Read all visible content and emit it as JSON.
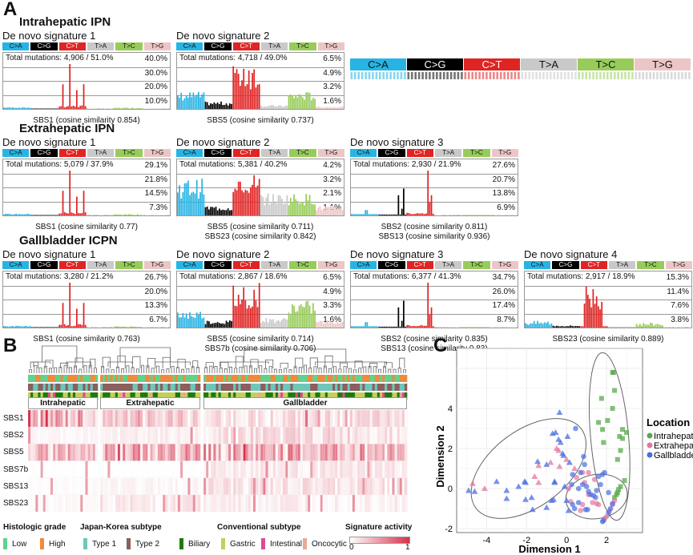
{
  "panels": {
    "a": "A",
    "b": "B",
    "c": "C"
  },
  "mutation_categories": [
    {
      "label": "C>A",
      "color": "#27b4e4",
      "text": "#111"
    },
    {
      "label": "C>G",
      "color": "#000000",
      "text": "#fff"
    },
    {
      "label": "C>T",
      "color": "#e02424",
      "text": "#fff"
    },
    {
      "label": "T>A",
      "color": "#c9c9c9",
      "text": "#111"
    },
    {
      "label": "T>C",
      "color": "#98cc5a",
      "text": "#111"
    },
    {
      "label": "T>G",
      "color": "#ecc6c6",
      "text": "#111"
    }
  ],
  "groups": [
    {
      "title": "Intrahepatic IPN",
      "signatures": [
        {
          "title": "De novo signature 1",
          "total": "Total mutations: 4,906 / 51.0%",
          "yticks": [
            "40.0%",
            "30.0%",
            "20.0%",
            "10.0%"
          ],
          "profile": "sbs1",
          "captions": [
            "SBS1 (cosine similarity 0.854)"
          ]
        },
        {
          "title": "De novo signature 2",
          "total": "Total mutations: 4,718 / 49.0%",
          "yticks": [
            "6.5%",
            "4.9%",
            "3.2%",
            "1.6%"
          ],
          "profile": "sbs5",
          "captions": [
            "SBS5 (cosine similarity 0.737)"
          ]
        }
      ]
    },
    {
      "title": "Extrahepatic IPN",
      "signatures": [
        {
          "title": "De novo signature 1",
          "total": "Total mutations: 5,079 / 37.9%",
          "yticks": [
            "29.1%",
            "21.8%",
            "14.5%",
            "7.3%"
          ],
          "profile": "sbs1",
          "captions": [
            "SBS1 (cosine similarity 0.77)"
          ]
        },
        {
          "title": "De novo signature 2",
          "total": "Total mutations: 5,381 / 40.2%",
          "yticks": [
            "4.2%",
            "3.2%",
            "2.1%",
            "1.1%"
          ],
          "profile": "sbs5b",
          "captions": [
            "SBS5 (cosine similarity 0.711)",
            "SBS23 (cosine similarity 0.842)"
          ]
        },
        {
          "title": "De novo signature 3",
          "total": "Total mutations: 2,930 / 21.9%",
          "yticks": [
            "27.6%",
            "20.7%",
            "13.8%",
            "6.9%"
          ],
          "profile": "sbs2",
          "captions": [
            "SBS2 (cosine similarity 0.811)",
            "SBS13 (cosine similarity 0.936)"
          ]
        }
      ]
    },
    {
      "title": "Gallbladder ICPN",
      "signatures": [
        {
          "title": "De novo signature 1",
          "total": "Total mutations: 3,280 / 21.2%",
          "yticks": [
            "26.7%",
            "20.0%",
            "13.3%",
            "6.7%"
          ],
          "profile": "sbs1",
          "captions": [
            "SBS1 (cosine similarity 0.763)"
          ]
        },
        {
          "title": "De novo signature 2",
          "total": "Total mutations: 2,867 / 18.6%",
          "yticks": [
            "6.5%",
            "4.9%",
            "3.3%",
            "1.6%"
          ],
          "profile": "sbs5c",
          "captions": [
            "SBS5 (cosine similarity 0.714)",
            "SBS7b (cosine similarity 0.706)"
          ]
        },
        {
          "title": "De novo signature 3",
          "total": "Total mutations: 6,377 / 41.3%",
          "yticks": [
            "34.7%",
            "26.0%",
            "17.4%",
            "8.7%"
          ],
          "profile": "sbs2",
          "captions": [
            "SBS2 (cosine similarity 0.835)",
            "SBS13 (cosine similarity 0.83)"
          ]
        },
        {
          "title": "De novo signature 4",
          "total": "Total mutations: 2,917 / 18.9%",
          "yticks": [
            "15.3%",
            "11.4%",
            "7.6%",
            "3.8%"
          ],
          "profile": "sbs23",
          "captions": [
            "SBS23 (cosine similarity 0.889)"
          ]
        }
      ]
    }
  ],
  "heatmap": {
    "regions": [
      "Intrahepatic",
      "Extrahepatic",
      "Gallbladder"
    ],
    "rows": [
      "SBS1",
      "SBS2",
      "SBS5",
      "SBS7b",
      "SBS13",
      "SBS23"
    ],
    "legend": {
      "histologic_grade": {
        "title": "Histologic grade",
        "items": [
          {
            "label": "Low",
            "color": "#5fd38d"
          },
          {
            "label": "High",
            "color": "#f08a3c"
          }
        ]
      },
      "japan_korea": {
        "title": "Japan-Korea subtype",
        "items": [
          {
            "label": "Type 1",
            "color": "#6ec6b9"
          },
          {
            "label": "Type 2",
            "color": "#8c5e5e"
          }
        ]
      },
      "conventional": {
        "title": "Conventional subtype",
        "items": [
          {
            "label": "Biliary",
            "color": "#1e7a0e"
          },
          {
            "label": "Gastric",
            "color": "#c3cf5a"
          },
          {
            "label": "Intestinal",
            "color": "#dd4c8f"
          },
          {
            "label": "Oncocytic",
            "color": "#e8a898"
          }
        ]
      },
      "activity": {
        "title": "Signature activity",
        "min": "0",
        "max": "1",
        "low_color": "#ffffff",
        "high_color": "#d7304a"
      }
    }
  },
  "chart_data": {
    "type": "scatter",
    "title": "",
    "xlabel": "Dimension 1",
    "ylabel": "Dimension 2",
    "xlim": [
      -5.5,
      3.8
    ],
    "ylim": [
      -2.2,
      7.0
    ],
    "xticks": [
      "-4",
      "-2",
      "0",
      "2"
    ],
    "yticks": [
      "-2",
      "0",
      "2",
      "4"
    ],
    "grid": true,
    "legend": {
      "title": "Location",
      "placement": "right"
    },
    "series": [
      {
        "name": "Intrahepatic",
        "color": "#5aa84e",
        "points": [
          [
            2.3,
            5.8
          ],
          [
            2.35,
            5.8
          ],
          [
            2.4,
            4.9
          ],
          [
            1.75,
            4.5
          ],
          [
            2.3,
            4.0
          ],
          [
            2.05,
            3.4
          ],
          [
            1.6,
            3.3
          ],
          [
            1.8,
            2.95
          ],
          [
            2.8,
            2.95
          ],
          [
            3.0,
            2.8
          ],
          [
            2.65,
            2.6
          ],
          [
            2.8,
            2.5
          ],
          [
            1.85,
            2.3
          ],
          [
            2.7,
            1.9
          ],
          [
            2.55,
            1.45
          ],
          [
            2.9,
            0.4
          ],
          [
            2.7,
            0.1
          ],
          [
            2.6,
            -0.05
          ],
          [
            2.55,
            -0.2
          ],
          [
            2.5,
            -0.3
          ],
          [
            2.4,
            -0.45
          ]
        ]
      },
      {
        "name": "Extrahepatic",
        "color": "#e2779f",
        "points": [
          [
            -4.7,
            0.25
          ],
          [
            -4.1,
            0.0
          ],
          [
            -1.4,
            0.3
          ],
          [
            -1.6,
            0.6
          ],
          [
            -1.4,
            1.15
          ],
          [
            -0.8,
            1.3
          ],
          [
            -0.5,
            2.0
          ],
          [
            -0.4,
            1.9
          ],
          [
            -0.35,
            1.1
          ],
          [
            0.0,
            1.45
          ],
          [
            0.4,
            1.0
          ],
          [
            0.8,
            0.8
          ],
          [
            1.1,
            0.8
          ],
          [
            0.5,
            0.55
          ],
          [
            1.4,
            0.45
          ],
          [
            0.9,
            0.3
          ],
          [
            1.5,
            -0.75
          ],
          [
            1.3,
            -0.7
          ],
          [
            1.6,
            -0.8
          ],
          [
            0.8,
            -0.8
          ],
          [
            0.7,
            -1.1
          ],
          [
            0.2,
            -0.65
          ],
          [
            0.1,
            0.0
          ],
          [
            1.1,
            -0.3
          ],
          [
            2.4,
            -0.6
          ],
          [
            2.3,
            -0.8
          ],
          [
            2.15,
            -1.1
          ],
          [
            2.0,
            -1.4
          ],
          [
            1.9,
            -1.5
          ]
        ]
      },
      {
        "name": "Gallbladder",
        "color": "#4a6de0",
        "points": [
          [
            -0.35,
            3.8
          ],
          [
            0.45,
            3.0
          ],
          [
            -0.7,
            2.75
          ],
          [
            -0.55,
            2.8
          ],
          [
            -0.4,
            2.45
          ],
          [
            -0.3,
            2.3
          ],
          [
            0.05,
            2.6
          ],
          [
            -0.2,
            1.75
          ],
          [
            -0.15,
            1.65
          ],
          [
            0.15,
            1.3
          ],
          [
            -1.45,
            1.35
          ],
          [
            -1.0,
            1.2
          ],
          [
            -2.4,
            0.1
          ],
          [
            -2.1,
            0.35
          ],
          [
            -2.05,
            0.3
          ],
          [
            -3.5,
            0.35
          ],
          [
            -3.0,
            -0.1
          ],
          [
            -4.9,
            -0.1
          ],
          [
            -4.6,
            -0.15
          ],
          [
            -3.0,
            -0.5
          ],
          [
            -2.05,
            -0.55
          ],
          [
            -1.75,
            -0.45
          ],
          [
            -1.7,
            -1.05
          ],
          [
            -1.0,
            -0.95
          ],
          [
            -0.75,
            -0.6
          ],
          [
            -0.65,
            -0.55
          ],
          [
            -0.6,
            0.3
          ],
          [
            -0.6,
            0.35
          ],
          [
            0.85,
            1.6
          ],
          [
            0.9,
            1.2
          ],
          [
            0.7,
            0.8
          ],
          [
            0.3,
            0.7
          ],
          [
            0.25,
            0.2
          ],
          [
            -0.1,
            0.1
          ],
          [
            0.6,
            0.0
          ],
          [
            0.8,
            0.2
          ],
          [
            1.0,
            0.1
          ],
          [
            1.1,
            -0.15
          ],
          [
            1.2,
            -0.3
          ],
          [
            1.35,
            -0.35
          ],
          [
            1.45,
            -0.45
          ],
          [
            1.5,
            -0.1
          ],
          [
            1.6,
            0.6
          ],
          [
            1.8,
            0.7
          ],
          [
            1.9,
            0.8
          ],
          [
            1.7,
            0.2
          ],
          [
            2.1,
            -0.2
          ],
          [
            0.0,
            -0.6
          ],
          [
            0.3,
            -0.8
          ],
          [
            0.6,
            -0.7
          ],
          [
            0.95,
            -1.05
          ],
          [
            1.05,
            -1.05
          ],
          [
            0.1,
            -1.1
          ],
          [
            0.4,
            -1.0
          ],
          [
            2.2,
            -1.0
          ],
          [
            2.1,
            -1.2
          ],
          [
            1.85,
            -1.6
          ],
          [
            1.8,
            -1.65
          ],
          [
            2.3,
            -0.75
          ]
        ]
      }
    ]
  }
}
